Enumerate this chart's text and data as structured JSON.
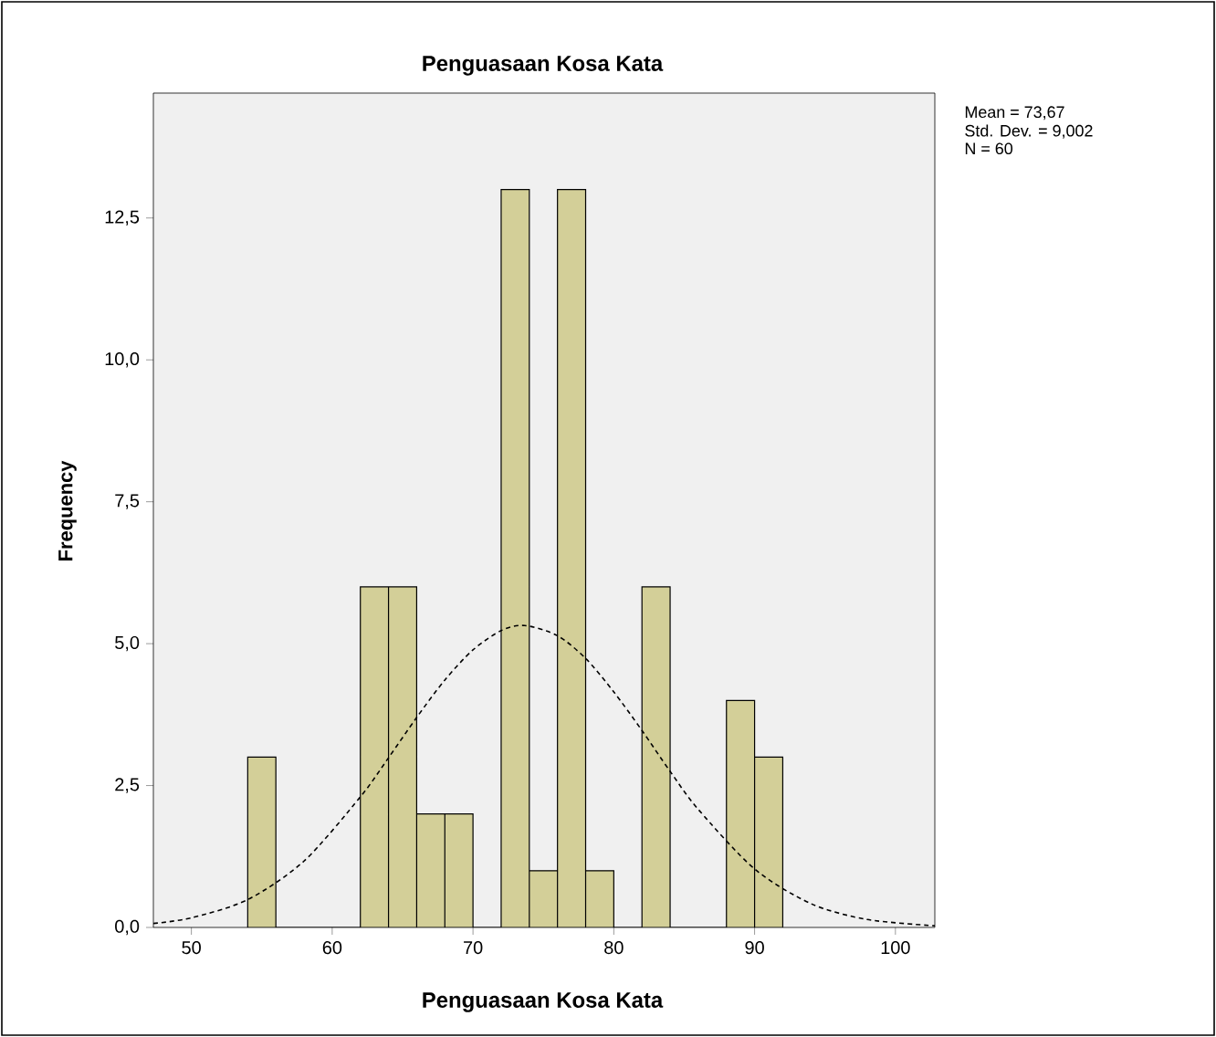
{
  "chart_data": {
    "type": "histogram",
    "title": "Penguasaan Kosa Kata",
    "xlabel": "Penguasaan Kosa Kata",
    "ylabel": "Frequency",
    "bins": [
      54,
      56,
      58,
      60,
      62,
      64,
      66,
      68,
      70,
      72,
      74,
      76,
      78,
      80,
      82,
      84,
      86,
      88,
      90,
      92
    ],
    "values": [
      3,
      0,
      0,
      0,
      6,
      6,
      2,
      2,
      0,
      13,
      1,
      13,
      1,
      0,
      6,
      0,
      0,
      4,
      3
    ],
    "color": "#d3cf98",
    "series": [
      {
        "type": "line",
        "color": "#000000",
        "line_style": "dashed",
        "x": [
          47.3,
          50,
          54,
          58,
          62,
          64,
          66,
          68,
          70,
          72,
          73.67,
          76,
          78,
          80,
          82,
          84,
          86,
          90,
          94,
          98,
          102.8
        ],
        "values": [
          0.07,
          0.17,
          0.49,
          1.17,
          2.3,
          2.99,
          3.7,
          4.36,
          4.89,
          5.23,
          5.32,
          5.14,
          4.74,
          4.15,
          3.47,
          2.75,
          2.08,
          1.03,
          0.42,
          0.14,
          0.03
        ]
      }
    ],
    "xlim": [
      47.3,
      102.8
    ],
    "ylim": [
      0,
      14.7
    ],
    "xticks": [
      50,
      60,
      70,
      80,
      90,
      100
    ],
    "yticks": [
      {
        "value": 0,
        "label": "0,0"
      },
      {
        "value": 2.5,
        "label": "2,5"
      },
      {
        "value": 5,
        "label": "5,0"
      },
      {
        "value": 7.5,
        "label": "7,5"
      },
      {
        "value": 10,
        "label": "10,0"
      },
      {
        "value": 12.5,
        "label": "12,5"
      }
    ],
    "annotations": [
      "Mean = 73,67",
      "Std. Dev. = 9,002",
      "N = 60"
    ]
  }
}
